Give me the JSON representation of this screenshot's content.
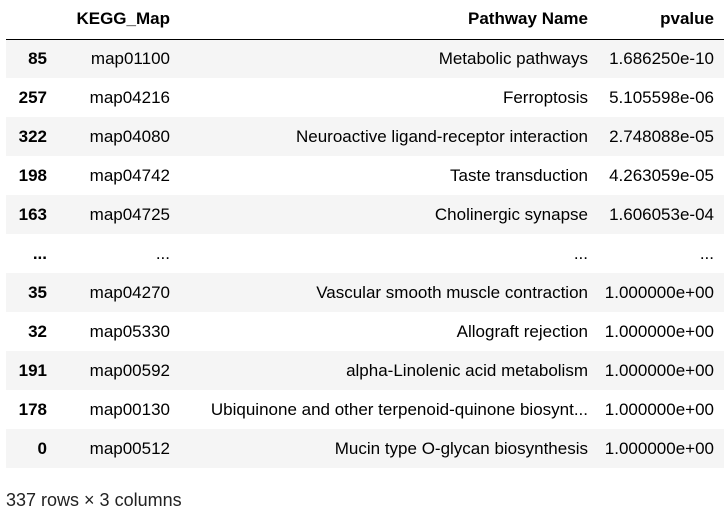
{
  "table": {
    "columns": [
      "",
      "KEGG_Map",
      "Pathway Name",
      "pvalue"
    ],
    "rows": [
      {
        "index": "85",
        "kegg_map": "map01100",
        "pathway_name": "Metabolic pathways",
        "pvalue": "1.686250e-10"
      },
      {
        "index": "257",
        "kegg_map": "map04216",
        "pathway_name": "Ferroptosis",
        "pvalue": "5.105598e-06"
      },
      {
        "index": "322",
        "kegg_map": "map04080",
        "pathway_name": "Neuroactive ligand-receptor interaction",
        "pvalue": "2.748088e-05"
      },
      {
        "index": "198",
        "kegg_map": "map04742",
        "pathway_name": "Taste transduction",
        "pvalue": "4.263059e-05"
      },
      {
        "index": "163",
        "kegg_map": "map04725",
        "pathway_name": "Cholinergic synapse",
        "pvalue": "1.606053e-04"
      },
      {
        "index": "...",
        "kegg_map": "...",
        "pathway_name": "...",
        "pvalue": "..."
      },
      {
        "index": "35",
        "kegg_map": "map04270",
        "pathway_name": "Vascular smooth muscle contraction",
        "pvalue": "1.000000e+00"
      },
      {
        "index": "32",
        "kegg_map": "map05330",
        "pathway_name": "Allograft rejection",
        "pvalue": "1.000000e+00"
      },
      {
        "index": "191",
        "kegg_map": "map00592",
        "pathway_name": "alpha-Linolenic acid metabolism",
        "pvalue": "1.000000e+00"
      },
      {
        "index": "178",
        "kegg_map": "map00130",
        "pathway_name": "Ubiquinone and other terpenoid-quinone biosynt...",
        "pvalue": "1.000000e+00"
      },
      {
        "index": "0",
        "kegg_map": "map00512",
        "pathway_name": "Mucin type O-glycan biosynthesis",
        "pvalue": "1.000000e+00"
      }
    ]
  },
  "shape_note": "337 rows × 3 columns"
}
